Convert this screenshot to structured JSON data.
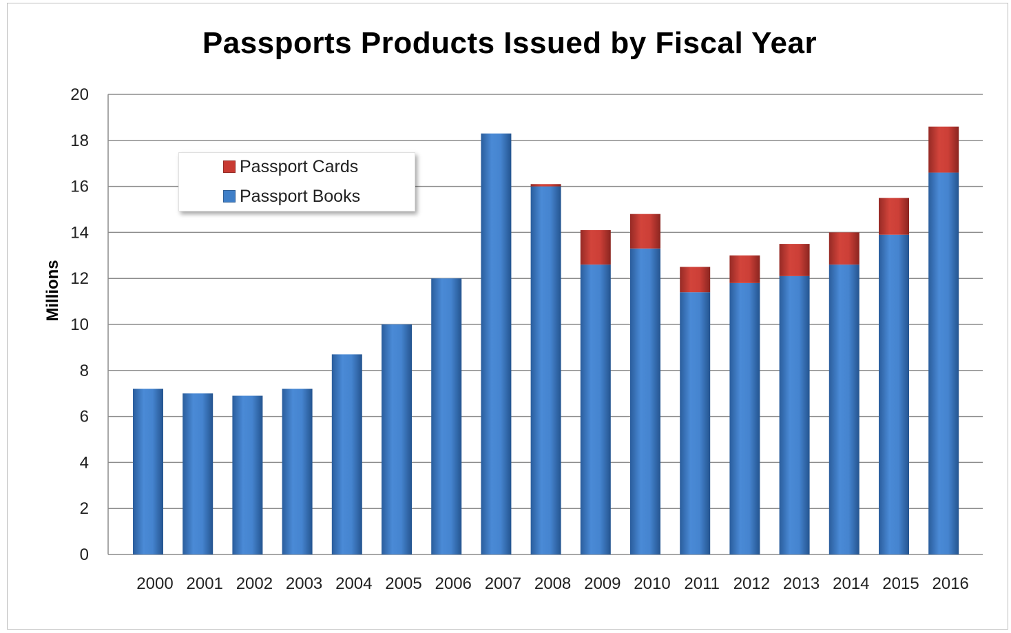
{
  "chart_data": {
    "type": "bar",
    "stacked": true,
    "title": "Passports Products Issued by Fiscal Year",
    "xlabel": "",
    "ylabel": "Millions",
    "ylim": [
      0,
      20
    ],
    "yticks": [
      "0",
      "2",
      "4",
      "6",
      "8",
      "10",
      "12",
      "14",
      "16",
      "18",
      "20"
    ],
    "grid": true,
    "legend_position": "top-left",
    "categories": [
      "2000",
      "2001",
      "2002",
      "2003",
      "2004",
      "2005",
      "2006",
      "2007",
      "2008",
      "2009",
      "2010",
      "2011",
      "2012",
      "2013",
      "2014",
      "2015",
      "2016"
    ],
    "series": [
      {
        "name": "Passport Books",
        "color": "#3f7fc8",
        "values": [
          7.2,
          7.0,
          6.9,
          7.2,
          8.7,
          10.0,
          12.0,
          18.3,
          16.0,
          12.6,
          13.3,
          11.4,
          11.8,
          12.1,
          12.6,
          13.9,
          16.6
        ]
      },
      {
        "name": "Passport Cards",
        "color": "#c83a32",
        "values": [
          0,
          0,
          0,
          0,
          0,
          0,
          0,
          0,
          0.1,
          1.5,
          1.5,
          1.1,
          1.2,
          1.4,
          1.4,
          1.6,
          2.0
        ]
      }
    ]
  }
}
